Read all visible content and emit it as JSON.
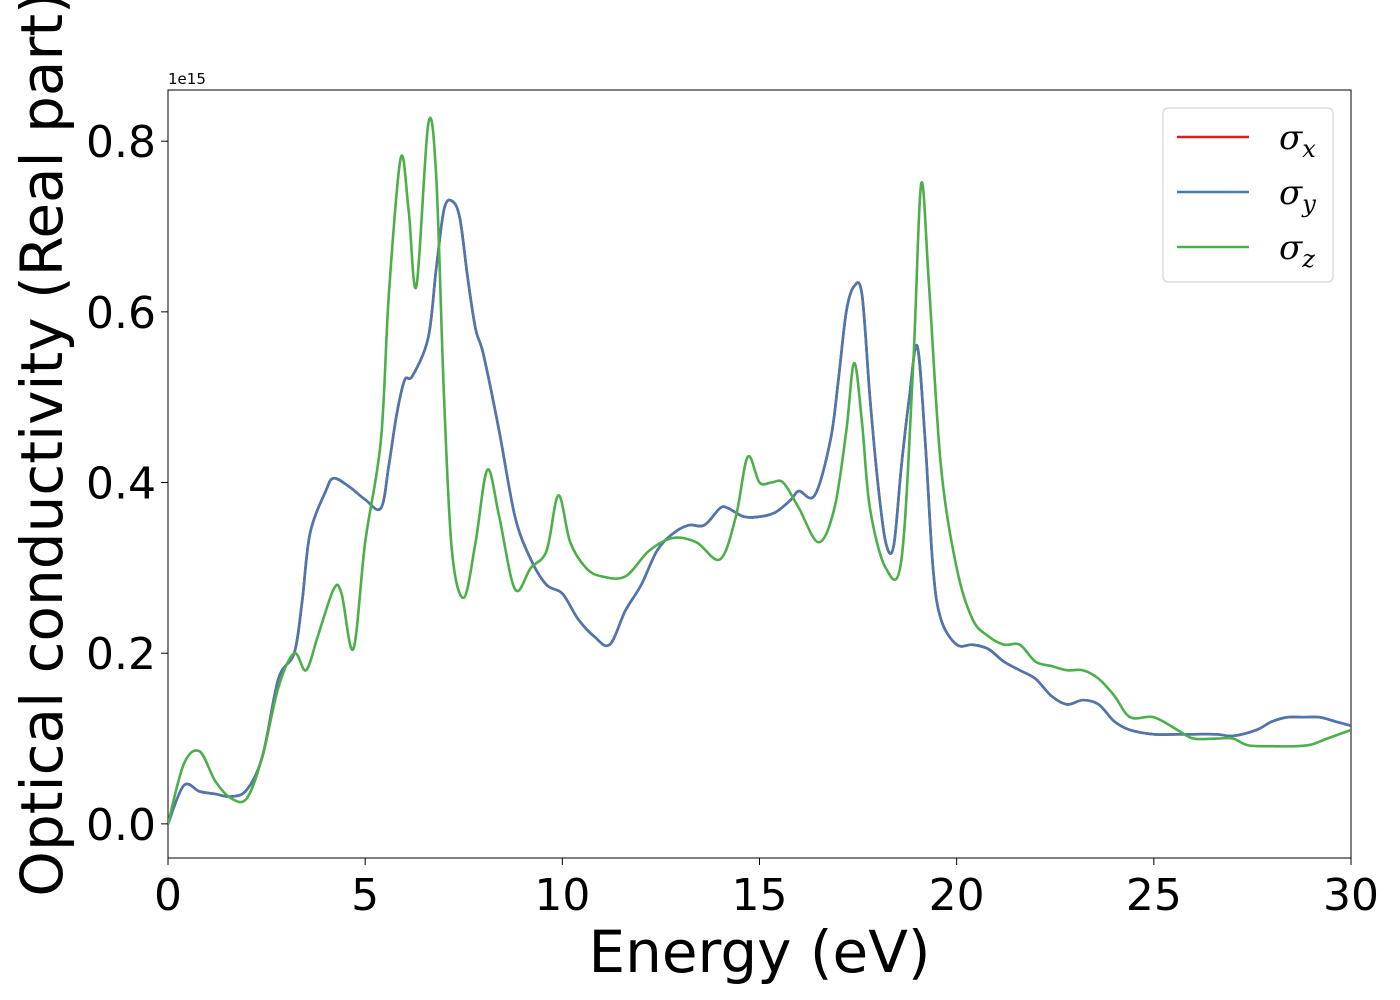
{
  "chart_data": {
    "type": "line",
    "title": "",
    "xlabel": "Energy (eV)",
    "ylabel": "Optical conductivity (Real part)",
    "y_offset_text": "1e15",
    "y_multiplier": 1000000000000000.0,
    "xlim": [
      0,
      30
    ],
    "ylim": [
      -0.04,
      0.86
    ],
    "xticks": [
      0,
      5,
      10,
      15,
      20,
      25,
      30
    ],
    "xtick_labels": [
      "0",
      "5",
      "10",
      "15",
      "20",
      "25",
      "30"
    ],
    "yticks": [
      0.0,
      0.2,
      0.4,
      0.6,
      0.8
    ],
    "ytick_labels": [
      "0.0",
      "0.2",
      "0.4",
      "0.6",
      "0.8"
    ],
    "grid": false,
    "legend": {
      "placement": "top-right"
    },
    "series": [
      {
        "name": "σ_x",
        "label_base": "σ",
        "label_sub": "x",
        "color": "#e41a1c",
        "x": [
          0,
          0.4,
          0.8,
          1.2,
          1.6,
          2.0,
          2.4,
          2.8,
          3.2,
          3.4,
          3.6,
          4.0,
          4.2,
          4.6,
          5.0,
          5.4,
          5.6,
          5.8,
          6.0,
          6.2,
          6.6,
          6.8,
          7.0,
          7.2,
          7.4,
          7.6,
          7.8,
          8.0,
          8.4,
          8.8,
          9.2,
          9.6,
          10.0,
          10.4,
          10.8,
          11.2,
          11.6,
          12.0,
          12.4,
          12.8,
          13.2,
          13.6,
          14.0,
          14.2,
          14.6,
          15.0,
          15.4,
          15.8,
          16.0,
          16.4,
          16.8,
          17.0,
          17.2,
          17.4,
          17.6,
          17.8,
          18.0,
          18.2,
          18.4,
          18.6,
          18.8,
          19.0,
          19.2,
          19.4,
          19.6,
          20.0,
          20.4,
          20.8,
          21.2,
          21.6,
          22.0,
          22.4,
          22.8,
          23.2,
          23.6,
          24.0,
          24.4,
          25.0,
          25.6,
          26.0,
          26.6,
          27.0,
          27.6,
          28.0,
          28.4,
          28.8,
          29.2,
          29.6,
          30.0
        ],
        "y": [
          0.0,
          0.045,
          0.038,
          0.035,
          0.032,
          0.04,
          0.08,
          0.17,
          0.2,
          0.26,
          0.34,
          0.39,
          0.405,
          0.395,
          0.38,
          0.37,
          0.42,
          0.48,
          0.52,
          0.525,
          0.57,
          0.65,
          0.72,
          0.73,
          0.71,
          0.64,
          0.58,
          0.55,
          0.46,
          0.36,
          0.31,
          0.28,
          0.27,
          0.24,
          0.22,
          0.21,
          0.25,
          0.28,
          0.32,
          0.34,
          0.35,
          0.35,
          0.37,
          0.37,
          0.36,
          0.36,
          0.365,
          0.38,
          0.39,
          0.385,
          0.45,
          0.52,
          0.6,
          0.63,
          0.62,
          0.5,
          0.4,
          0.33,
          0.325,
          0.42,
          0.5,
          0.56,
          0.45,
          0.3,
          0.24,
          0.21,
          0.21,
          0.205,
          0.19,
          0.18,
          0.17,
          0.15,
          0.14,
          0.145,
          0.14,
          0.12,
          0.11,
          0.105,
          0.105,
          0.105,
          0.105,
          0.103,
          0.11,
          0.12,
          0.125,
          0.125,
          0.125,
          0.12,
          0.115
        ]
      },
      {
        "name": "σ_y",
        "label_base": "σ",
        "label_sub": "y",
        "color": "#4a78b0",
        "x": [
          0,
          0.4,
          0.8,
          1.2,
          1.6,
          2.0,
          2.4,
          2.8,
          3.2,
          3.4,
          3.6,
          4.0,
          4.2,
          4.6,
          5.0,
          5.4,
          5.6,
          5.8,
          6.0,
          6.2,
          6.6,
          6.8,
          7.0,
          7.2,
          7.4,
          7.6,
          7.8,
          8.0,
          8.4,
          8.8,
          9.2,
          9.6,
          10.0,
          10.4,
          10.8,
          11.2,
          11.6,
          12.0,
          12.4,
          12.8,
          13.2,
          13.6,
          14.0,
          14.2,
          14.6,
          15.0,
          15.4,
          15.8,
          16.0,
          16.4,
          16.8,
          17.0,
          17.2,
          17.4,
          17.6,
          17.8,
          18.0,
          18.2,
          18.4,
          18.6,
          18.8,
          19.0,
          19.2,
          19.4,
          19.6,
          20.0,
          20.4,
          20.8,
          21.2,
          21.6,
          22.0,
          22.4,
          22.8,
          23.2,
          23.6,
          24.0,
          24.4,
          25.0,
          25.6,
          26.0,
          26.6,
          27.0,
          27.6,
          28.0,
          28.4,
          28.8,
          29.2,
          29.6,
          30.0
        ],
        "y": [
          0.0,
          0.045,
          0.038,
          0.035,
          0.032,
          0.04,
          0.08,
          0.17,
          0.2,
          0.26,
          0.34,
          0.39,
          0.405,
          0.395,
          0.38,
          0.37,
          0.42,
          0.48,
          0.52,
          0.525,
          0.57,
          0.65,
          0.72,
          0.73,
          0.71,
          0.64,
          0.58,
          0.55,
          0.46,
          0.36,
          0.31,
          0.28,
          0.27,
          0.24,
          0.22,
          0.21,
          0.25,
          0.28,
          0.32,
          0.34,
          0.35,
          0.35,
          0.37,
          0.37,
          0.36,
          0.36,
          0.365,
          0.38,
          0.39,
          0.385,
          0.45,
          0.52,
          0.6,
          0.63,
          0.62,
          0.5,
          0.4,
          0.33,
          0.325,
          0.42,
          0.5,
          0.56,
          0.45,
          0.3,
          0.24,
          0.21,
          0.21,
          0.205,
          0.19,
          0.18,
          0.17,
          0.15,
          0.14,
          0.145,
          0.14,
          0.12,
          0.11,
          0.105,
          0.105,
          0.105,
          0.105,
          0.103,
          0.11,
          0.12,
          0.125,
          0.125,
          0.125,
          0.12,
          0.115
        ]
      },
      {
        "name": "σ_z",
        "label_base": "σ",
        "label_sub": "z",
        "color": "#4daf4a",
        "x": [
          0,
          0.4,
          0.8,
          1.2,
          1.6,
          2.0,
          2.4,
          2.8,
          3.2,
          3.5,
          3.8,
          4.2,
          4.4,
          4.7,
          5.0,
          5.4,
          5.6,
          5.9,
          6.1,
          6.3,
          6.6,
          6.8,
          7.0,
          7.2,
          7.5,
          7.8,
          8.1,
          8.4,
          8.8,
          9.2,
          9.6,
          9.9,
          10.2,
          10.6,
          11.0,
          11.6,
          12.2,
          12.8,
          13.4,
          14.0,
          14.4,
          14.7,
          15.0,
          15.3,
          15.6,
          16.0,
          16.5,
          16.9,
          17.2,
          17.4,
          17.6,
          17.8,
          18.2,
          18.6,
          18.9,
          19.1,
          19.3,
          19.6,
          20.0,
          20.4,
          20.8,
          21.2,
          21.6,
          22.0,
          22.4,
          22.8,
          23.2,
          23.6,
          24.0,
          24.4,
          25.0,
          25.6,
          26.0,
          26.6,
          27.0,
          27.4,
          28.0,
          28.6,
          29.0,
          29.4,
          30.0
        ],
        "y": [
          0.0,
          0.07,
          0.085,
          0.05,
          0.03,
          0.03,
          0.08,
          0.16,
          0.2,
          0.18,
          0.22,
          0.275,
          0.27,
          0.205,
          0.33,
          0.45,
          0.62,
          0.78,
          0.72,
          0.63,
          0.82,
          0.76,
          0.5,
          0.32,
          0.265,
          0.33,
          0.415,
          0.36,
          0.275,
          0.3,
          0.32,
          0.385,
          0.33,
          0.3,
          0.29,
          0.29,
          0.32,
          0.335,
          0.33,
          0.31,
          0.36,
          0.43,
          0.4,
          0.4,
          0.4,
          0.37,
          0.33,
          0.37,
          0.46,
          0.54,
          0.47,
          0.37,
          0.3,
          0.31,
          0.54,
          0.75,
          0.63,
          0.42,
          0.3,
          0.24,
          0.22,
          0.21,
          0.21,
          0.19,
          0.185,
          0.18,
          0.18,
          0.17,
          0.15,
          0.125,
          0.125,
          0.11,
          0.1,
          0.1,
          0.1,
          0.092,
          0.091,
          0.091,
          0.093,
          0.1,
          0.11
        ]
      }
    ]
  }
}
